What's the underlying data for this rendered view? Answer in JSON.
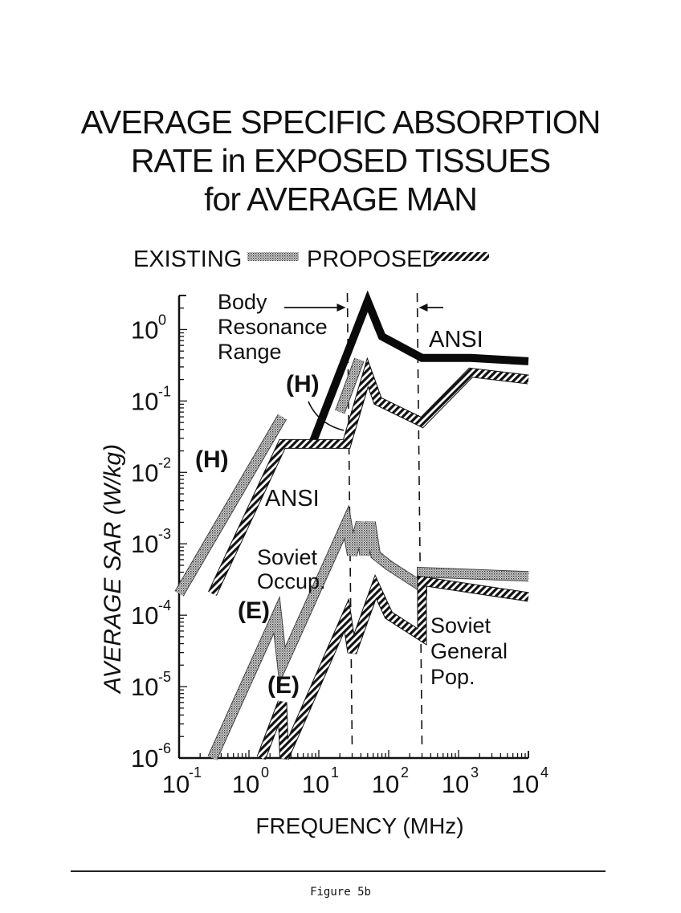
{
  "chart_data": {
    "type": "line",
    "title": [
      "AVERAGE SPECIFIC ABSORPTION",
      "RATE in EXPOSED TISSUES",
      "for AVERAGE MAN"
    ],
    "xlabel": "FREQUENCY (MHz)",
    "ylabel": "AVERAGE SAR (W/kg)",
    "x_scale": "log",
    "y_scale": "log",
    "xlim": [
      0.1,
      10000
    ],
    "ylim": [
      1e-06,
      3
    ],
    "x_ticks": [
      {
        "base": "10",
        "exp": "-1"
      },
      {
        "base": "10",
        "exp": "0"
      },
      {
        "base": "10",
        "exp": "1"
      },
      {
        "base": "10",
        "exp": "2"
      },
      {
        "base": "10",
        "exp": "3"
      },
      {
        "base": "10",
        "exp": "4"
      }
    ],
    "y_ticks": [
      {
        "base": "10",
        "exp": "0"
      },
      {
        "base": "10",
        "exp": "-1"
      },
      {
        "base": "10",
        "exp": "-2"
      },
      {
        "base": "10",
        "exp": "-3"
      },
      {
        "base": "10",
        "exp": "-4"
      },
      {
        "base": "10",
        "exp": "-5"
      },
      {
        "base": "10",
        "exp": "-6"
      }
    ],
    "legend": {
      "position": "top",
      "entries": [
        {
          "label": "EXISTING",
          "style": "stippled"
        },
        {
          "label": "PROPOSED",
          "style": "hatched"
        }
      ]
    },
    "series": [
      {
        "label_ref": "ANSI (existing)",
        "style": "solid-dark",
        "x": [
          8,
          50,
          80,
          300,
          1500,
          10000
        ],
        "y": [
          0.025,
          2.5,
          0.8,
          0.4,
          0.4,
          0.36
        ]
      },
      {
        "label_ref": "(H) existing",
        "style": "stippled",
        "x": [
          0.1,
          3
        ],
        "y": [
          0.0002,
          0.06
        ]
      },
      {
        "label_ref": "(H) proposed",
        "style": "stippled",
        "x": [
          20,
          38
        ],
        "y": [
          0.07,
          0.38
        ]
      },
      {
        "label_ref": "ANSI (proposed)",
        "style": "hatched",
        "x": [
          0.3,
          3,
          25,
          50,
          70,
          300,
          1500,
          10000
        ],
        "y": [
          0.0002,
          0.025,
          0.025,
          0.25,
          0.1,
          0.05,
          0.25,
          0.2
        ]
      },
      {
        "label_ref": "Soviet Occup. (existing)",
        "style": "stippled",
        "x": [
          0.3,
          2.5,
          3,
          25,
          30,
          40,
          45,
          55,
          65,
          100,
          300,
          300,
          10000
        ],
        "y": [
          1e-06,
          0.0001,
          2e-05,
          0.002,
          0.0007,
          0.002,
          0.0007,
          0.002,
          0.0007,
          0.0005,
          0.00025,
          0.0004,
          0.00035
        ]
      },
      {
        "label_ref": "Soviet General Pop. (proposed)",
        "style": "hatched",
        "x": [
          1.5,
          3,
          3.2,
          25,
          30,
          65,
          100,
          300,
          300,
          10000
        ],
        "y": [
          1e-06,
          6e-06,
          1e-06,
          0.0001,
          3e-05,
          0.00025,
          0.0001,
          5e-05,
          0.0003,
          0.00018
        ]
      }
    ],
    "annotations": [
      {
        "id": "body_resonance",
        "lines": [
          "Body",
          "Resonance",
          "Range"
        ]
      },
      {
        "id": "ansi_top",
        "text": "ANSI"
      },
      {
        "id": "h_mid",
        "text": "(H)"
      },
      {
        "id": "h_left",
        "text": "(H)"
      },
      {
        "id": "ansi_mid",
        "text": "ANSI"
      },
      {
        "id": "soviet_occup",
        "lines": [
          "Soviet",
          "Occup."
        ]
      },
      {
        "id": "e_upper",
        "text": "(E)"
      },
      {
        "id": "e_lower",
        "text": "(E)"
      },
      {
        "id": "soviet_general",
        "lines": [
          "Soviet",
          "General",
          "Pop."
        ]
      }
    ],
    "body_resonance_range_mhz": [
      30,
      300
    ]
  },
  "caption": "Figure 5b"
}
